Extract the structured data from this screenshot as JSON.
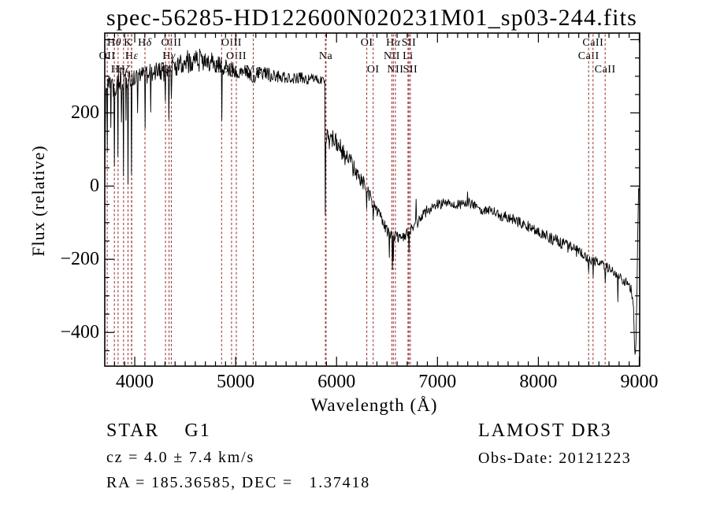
{
  "title": "spec-56285-HD122600N020231M01_sp03-244.fits",
  "colors": {
    "background": "#ffffff",
    "spectrum": "#000000",
    "frame": "#000000",
    "line_marker": "#9c3a38"
  },
  "axes": {
    "xlabel": "Wavelength (Å)",
    "ylabel": "Flux (relative)",
    "x_major_ticks": [
      4000,
      5000,
      6000,
      7000,
      8000,
      9000
    ],
    "x_minor_step": 100,
    "y_major_tick_labels": [
      200,
      0,
      -200,
      -400
    ],
    "y_major_step": 200,
    "y_minor_step": 50,
    "xlim": [
      3703,
      9004
    ],
    "ylim": [
      -492,
      418
    ]
  },
  "spectral_lines": {
    "markers": [
      3727,
      3798,
      3835,
      3889,
      3933,
      3968,
      3970,
      4101,
      4305,
      4340,
      4363,
      4861,
      4959,
      5007,
      5175,
      5890,
      5896,
      6300,
      6363,
      6548,
      6563,
      6583,
      6708,
      6717,
      6731,
      8498,
      8542,
      8662
    ],
    "labels": [
      {
        "text": "Hθ",
        "wavelength": 3798,
        "row": 0
      },
      {
        "text": "K",
        "wavelength": 3933,
        "row": 0
      },
      {
        "text": "Hδ",
        "wavelength": 4101,
        "row": 0
      },
      {
        "text": "OIII",
        "wavelength": 4363,
        "row": 0
      },
      {
        "text": "OIII",
        "wavelength": 4959,
        "row": 0
      },
      {
        "text": "OI",
        "wavelength": 6300,
        "row": 0
      },
      {
        "text": "Hα",
        "wavelength": 6563,
        "row": 0
      },
      {
        "text": "SII",
        "wavelength": 6717,
        "row": 0
      },
      {
        "text": "CaII",
        "wavelength": 8542,
        "row": 0
      },
      {
        "text": "OII",
        "wavelength": 3727,
        "row": 1
      },
      {
        "text": "Hε",
        "wavelength": 3970,
        "row": 1
      },
      {
        "text": "Hγ",
        "wavelength": 4340,
        "row": 1
      },
      {
        "text": "OIII",
        "wavelength": 5007,
        "row": 1
      },
      {
        "text": "Na",
        "wavelength": 5893,
        "row": 1
      },
      {
        "text": "NII",
        "wavelength": 6548,
        "row": 1
      },
      {
        "text": "Li",
        "wavelength": 6708,
        "row": 1
      },
      {
        "text": "CaII",
        "wavelength": 8498,
        "row": 1
      },
      {
        "text": "Hη",
        "wavelength": 3835,
        "row": 2
      },
      {
        "text": "Hζ",
        "wavelength": 3889,
        "row": 2
      },
      {
        "text": "G",
        "wavelength": 4305,
        "row": 2
      },
      {
        "text": "Hβ",
        "wavelength": 4861,
        "row": 2
      },
      {
        "text": "Mg",
        "wavelength": 5175,
        "row": 2
      },
      {
        "text": "OI",
        "wavelength": 6363,
        "row": 2
      },
      {
        "text": "NII",
        "wavelength": 6583,
        "row": 2
      },
      {
        "text": "SII",
        "wavelength": 6731,
        "row": 2
      },
      {
        "text": "CaII",
        "wavelength": 8662,
        "row": 2
      }
    ]
  },
  "annotations": {
    "class_line": "STAR    G1",
    "cz_line": "cz = 4.0 ± 7.4 km/s",
    "radec_line": "RA = 185.36585, DEC =   1.37418",
    "survey": "LAMOST DR3",
    "obs_date": "Obs-Date: 20121223"
  },
  "chart_data": {
    "type": "line",
    "title": "spec-56285-HD122600N020231M01_sp03-244.fits",
    "xlabel": "Wavelength (Å)",
    "ylabel": "Flux (relative)",
    "xlim": [
      3703,
      9004
    ],
    "ylim": [
      -492,
      418
    ],
    "grid": false,
    "series": [
      {
        "name": "spectrum",
        "note": "envelope points are [wavelength, flux, noise_amplitude]; spikes are [wavelength, flux] narrow line features",
        "envelope": [
          [
            3703,
            30,
            20
          ],
          [
            3712,
            240,
            25
          ],
          [
            3725,
            270,
            28
          ],
          [
            3745,
            272,
            30
          ],
          [
            3775,
            272,
            30
          ],
          [
            3810,
            278,
            32
          ],
          [
            3845,
            280,
            33
          ],
          [
            3880,
            282,
            32
          ],
          [
            3915,
            290,
            30
          ],
          [
            3950,
            294,
            26
          ],
          [
            3990,
            298,
            24
          ],
          [
            4040,
            302,
            24
          ],
          [
            4095,
            303,
            24
          ],
          [
            4150,
            307,
            26
          ],
          [
            4210,
            314,
            28
          ],
          [
            4270,
            311,
            27
          ],
          [
            4330,
            314,
            27
          ],
          [
            4385,
            324,
            29
          ],
          [
            4445,
            332,
            31
          ],
          [
            4520,
            340,
            32
          ],
          [
            4600,
            345,
            32
          ],
          [
            4680,
            344,
            31
          ],
          [
            4760,
            340,
            29
          ],
          [
            4830,
            334,
            26
          ],
          [
            4880,
            327,
            23
          ],
          [
            4935,
            321,
            21
          ],
          [
            5000,
            315,
            21
          ],
          [
            5060,
            316,
            20
          ],
          [
            5120,
            311,
            19
          ],
          [
            5172,
            287,
            14
          ],
          [
            5215,
            307,
            19
          ],
          [
            5290,
            306,
            19
          ],
          [
            5380,
            302,
            19
          ],
          [
            5470,
            299,
            18
          ],
          [
            5560,
            296,
            17
          ],
          [
            5650,
            294,
            16
          ],
          [
            5740,
            292,
            15
          ],
          [
            5820,
            290,
            13
          ],
          [
            5872,
            289,
            9
          ],
          [
            5884,
            288,
            5
          ],
          [
            5888,
            -77,
            4
          ],
          [
            5894,
            135,
            22
          ],
          [
            5912,
            123,
            32
          ],
          [
            5942,
            138,
            28
          ],
          [
            5975,
            124,
            28
          ],
          [
            6015,
            110,
            28
          ],
          [
            6075,
            86,
            27
          ],
          [
            6135,
            64,
            26
          ],
          [
            6195,
            36,
            24
          ],
          [
            6255,
            12,
            22
          ],
          [
            6310,
            -12,
            20
          ],
          [
            6360,
            -45,
            18
          ],
          [
            6415,
            -78,
            18
          ],
          [
            6470,
            -104,
            18
          ],
          [
            6520,
            -128,
            19
          ],
          [
            6562,
            -136,
            19
          ],
          [
            6605,
            -135,
            18
          ],
          [
            6650,
            -141,
            17
          ],
          [
            6698,
            -128,
            16
          ],
          [
            6740,
            -117,
            15
          ],
          [
            6782,
            -107,
            14
          ],
          [
            6830,
            -89,
            15
          ],
          [
            6882,
            -71,
            15
          ],
          [
            6940,
            -58,
            15
          ],
          [
            7005,
            -51,
            15
          ],
          [
            7075,
            -46,
            15
          ],
          [
            7150,
            -47,
            15
          ],
          [
            7225,
            -48,
            16
          ],
          [
            7305,
            -44,
            15
          ],
          [
            7390,
            -61,
            15
          ],
          [
            7470,
            -67,
            15
          ],
          [
            7555,
            -73,
            15
          ],
          [
            7650,
            -82,
            15
          ],
          [
            7750,
            -92,
            15
          ],
          [
            7850,
            -103,
            15
          ],
          [
            7950,
            -117,
            15
          ],
          [
            8050,
            -131,
            16
          ],
          [
            8150,
            -145,
            17
          ],
          [
            8250,
            -159,
            17
          ],
          [
            8350,
            -173,
            17
          ],
          [
            8440,
            -189,
            15
          ],
          [
            8510,
            -201,
            13
          ],
          [
            8580,
            -207,
            13
          ],
          [
            8650,
            -217,
            13
          ],
          [
            8715,
            -227,
            13
          ],
          [
            8765,
            -240,
            11
          ],
          [
            8805,
            -251,
            13
          ],
          [
            8845,
            -257,
            14
          ],
          [
            8885,
            -267,
            15
          ],
          [
            8920,
            -283,
            13
          ],
          [
            8942,
            -325,
            9
          ],
          [
            8956,
            -468,
            5
          ],
          [
            8966,
            -452,
            5
          ],
          [
            8976,
            -310,
            5
          ],
          [
            8985,
            -125,
            4
          ],
          [
            8992,
            -4,
            3
          ],
          [
            9000,
            -14,
            3
          ]
        ],
        "spikes": [
          [
            3727,
            95
          ],
          [
            3762,
            160
          ],
          [
            3798,
            55
          ],
          [
            3835,
            82
          ],
          [
            3868,
            175
          ],
          [
            3889,
            28
          ],
          [
            3912,
            180
          ],
          [
            3933,
            6
          ],
          [
            3968,
            34
          ],
          [
            4026,
            200
          ],
          [
            4101,
            158
          ],
          [
            4160,
            202
          ],
          [
            4305,
            232
          ],
          [
            4340,
            182
          ],
          [
            4363,
            242
          ],
          [
            4861,
            180
          ],
          [
            6300,
            -62
          ],
          [
            6363,
            -92
          ],
          [
            6525,
            -195
          ],
          [
            6555,
            -228
          ],
          [
            6563,
            -205
          ],
          [
            6717,
            -182
          ],
          [
            6790,
            -36
          ],
          [
            7300,
            -16
          ],
          [
            8498,
            -235
          ],
          [
            8542,
            -249
          ],
          [
            8662,
            -263
          ],
          [
            8790,
            -316
          ]
        ]
      }
    ]
  }
}
